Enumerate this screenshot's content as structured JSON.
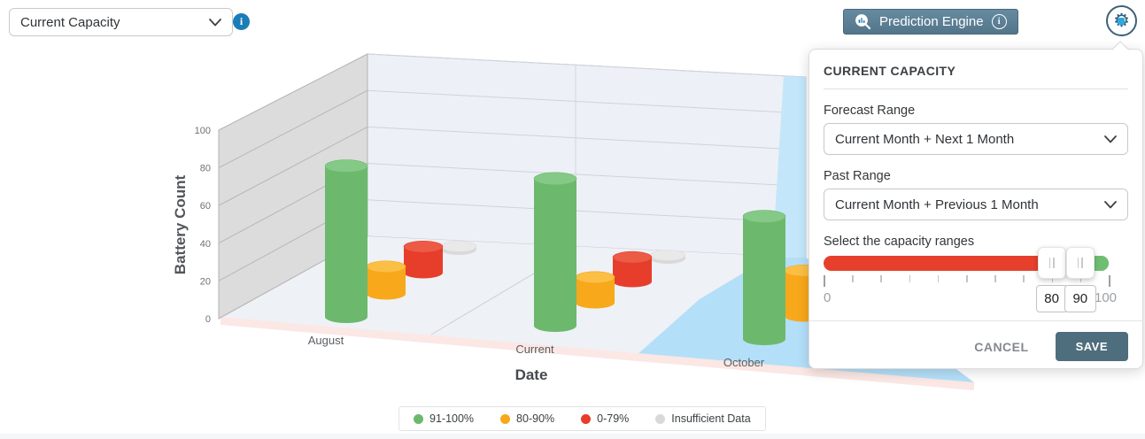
{
  "topbar": {
    "metric_dropdown": {
      "value": "Current Capacity"
    },
    "prediction_button": {
      "label": "Prediction Engine"
    }
  },
  "chart_data": {
    "type": "bar",
    "subtype": "3d-cylinder",
    "title": "",
    "categories": [
      "August",
      "Current",
      "October"
    ],
    "xlabel": "Date",
    "ylabel": "Battery Count",
    "ylim": [
      0,
      100
    ],
    "yticks": [
      0,
      20,
      40,
      60,
      80,
      100
    ],
    "legend_position": "bottom",
    "forecast_highlight": {
      "category": "October",
      "floor_color": "#b4dff8"
    },
    "series": [
      {
        "name": "91-100%",
        "color": "#6cb96d",
        "color_top": "#85c987",
        "values": [
          80,
          78,
          65
        ]
      },
      {
        "name": "80-90%",
        "color": "#f8a81b",
        "color_top": "#fbbf45",
        "values": [
          15,
          14,
          25
        ]
      },
      {
        "name": "0-79%",
        "color": "#e63e2b",
        "color_top": "#ec5b45",
        "values": [
          15,
          14,
          null
        ]
      },
      {
        "name": "Insufficient Data",
        "color": "#d9d9d9",
        "color_top": "#e9e9e9",
        "values": [
          0,
          0,
          null
        ]
      }
    ],
    "occlusion_note": "October 0-79% and Insufficient Data bars are hidden behind the settings panel"
  },
  "panel": {
    "title": "CURRENT CAPACITY",
    "forecast": {
      "label": "Forecast Range",
      "value": "Current Month + Next 1 Month"
    },
    "past": {
      "label": "Past Range",
      "value": "Current Month + Previous 1 Month"
    },
    "capacity": {
      "label": "Select the capacity ranges",
      "min": 0,
      "max": 100,
      "low": 80,
      "high": 90,
      "low_str": "80",
      "high_str": "90",
      "min_label": "0",
      "max_label": "100"
    },
    "cancel_label": "CANCEL",
    "save_label": "SAVE"
  },
  "colors": {
    "accent_blue": "#1a7db8",
    "prediction_button": "#53758a",
    "save_button": "#4e6d7d",
    "slider_red": "#e6402c",
    "slider_green": "#6fbf73"
  }
}
